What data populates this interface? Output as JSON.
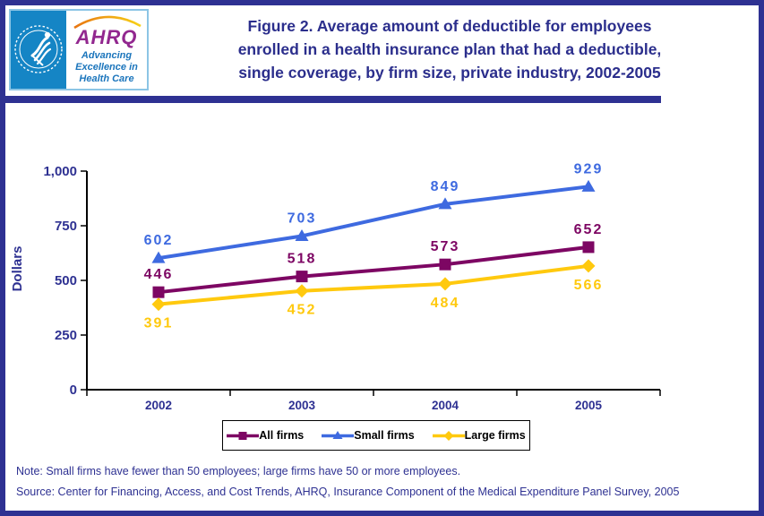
{
  "header": {
    "logo": {
      "ahrq_acronym": "AHRQ",
      "tagline_line1": "Advancing",
      "tagline_line2": "Excellence in",
      "tagline_line3": "Health Care"
    },
    "title_lines": [
      "Figure 2. Average amount of deductible for employees",
      "enrolled in a health insurance plan that had a deductible,",
      "single coverage, by firm size, private industry, 2002-2005"
    ]
  },
  "chart_data": {
    "type": "line",
    "title": "Figure 2. Average amount of deductible for employees enrolled in a health insurance plan that had a deductible, single coverage, by firm size, private industry, 2002-2005",
    "xlabel": "",
    "ylabel": "Dollars",
    "categories": [
      "2002",
      "2003",
      "2004",
      "2005"
    ],
    "ylim": [
      0,
      1000
    ],
    "yticks": [
      0,
      250,
      500,
      750,
      1000
    ],
    "ytick_labels": [
      "0",
      "250",
      "500",
      "750",
      "1,000"
    ],
    "grid": false,
    "legend_position": "bottom",
    "series": [
      {
        "name": "All firms",
        "values": [
          446,
          518,
          573,
          652
        ],
        "color": "#7D0663",
        "marker": "square",
        "label_position": "above"
      },
      {
        "name": "Small firms",
        "values": [
          602,
          703,
          849,
          929
        ],
        "color": "#3E6AE0",
        "marker": "triangle",
        "label_position": "above"
      },
      {
        "name": "Large firms",
        "values": [
          391,
          452,
          484,
          566
        ],
        "color": "#FFC90E",
        "marker": "diamond",
        "label_position": "below"
      }
    ]
  },
  "footer": {
    "note": "Note: Small firms have fewer than 50 employees; large firms have 50 or more employees.",
    "source": "Source: Center for Financing, Access, and Cost Trends, AHRQ, Insurance Component of the Medical Expenditure Panel Survey, 2005"
  },
  "colors": {
    "accent_navy": "#2E3192",
    "title_navy": "#2B2E8C",
    "axis_black": "#000000",
    "logo_panel_blue": "#1585C5",
    "ahrq_purple": "#92278F",
    "tagline_blue": "#1B75BC"
  }
}
